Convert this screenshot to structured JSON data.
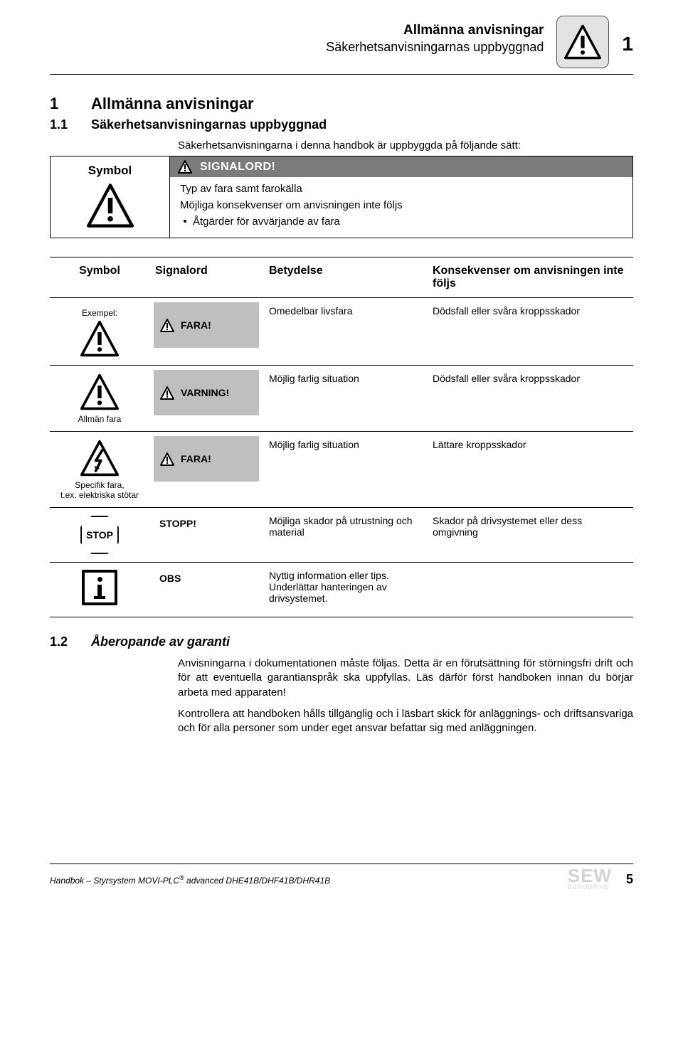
{
  "header": {
    "title_bold": "Allmänna anvisningar",
    "title_sub": "Säkerhetsanvisningarnas uppbyggnad",
    "chapter_num": "1"
  },
  "h1": {
    "num": "1",
    "text": "Allmänna anvisningar"
  },
  "h11": {
    "num": "1.1",
    "text": "Säkerhetsanvisningarnas uppbyggnad"
  },
  "intro": "Säkerhetsanvisningarna i denna handbok är uppbyggda på följande sätt:",
  "box": {
    "left_label": "Symbol",
    "signalword": "SIGNALORD!",
    "line1": "Typ av fara samt farokälla",
    "line2": "Möjliga konsekvenser om anvisningen inte följs",
    "bullet": "Åtgärder för avvärjande av fara"
  },
  "table": {
    "headers": {
      "symbol": "Symbol",
      "signal": "Signalord",
      "meaning": "Betydelse",
      "consequence": "Konsekvenser om anvisningen inte följs"
    },
    "rows": [
      {
        "sym_label": "Exempel:",
        "icon": "triangle-exclaim",
        "sym_caption": "",
        "sig_bg": true,
        "sig_icon": "triangle-exclaim-small",
        "signal": "FARA!",
        "meaning": "Omedelbar livsfara",
        "consequence": "Dödsfall eller svåra kroppsskador"
      },
      {
        "icon": "triangle-exclaim",
        "sym_caption": "Allmän fara",
        "sig_bg": true,
        "sig_icon": "triangle-exclaim-small",
        "signal": "VARNING!",
        "meaning": "Möjlig farlig situation",
        "consequence": "Dödsfall eller svåra kroppsskador"
      },
      {
        "icon": "triangle-bolt",
        "sym_caption": "Specifik fara,\nt.ex. elektriska stötar",
        "sig_bg": true,
        "sig_icon": "triangle-exclaim-small",
        "signal": "FARA!",
        "meaning": "Möjlig farlig situation",
        "consequence": "Lättare kroppsskador"
      },
      {
        "icon": "stop",
        "sym_caption": "",
        "sig_bg": false,
        "signal": "STOPP!",
        "meaning": "Möjliga skador på utrustning och material",
        "consequence": "Skador på drivsystemet eller dess omgivning"
      },
      {
        "icon": "info",
        "sym_caption": "",
        "sig_bg": false,
        "signal": "OBS",
        "meaning": "Nyttig information eller tips. Underlättar hanteringen av drivsystemet.",
        "consequence": ""
      }
    ]
  },
  "h12": {
    "num": "1.2",
    "text": "Åberopande av garanti"
  },
  "para1": "Anvisningarna i dokumentationen måste följas. Detta är en förutsättning för störningsfri drift och för att eventuella garantianspråk ska uppfyllas. Läs därför först handboken innan du börjar arbeta med apparaten!",
  "para2": "Kontrollera att handboken hålls tillgänglig och i läsbart skick för anläggnings- och driftsansvariga och för alla personer som under eget ansvar befattar sig med anläggningen.",
  "footer": {
    "left_pre": "Handbok – Styrsystem MOVI-PLC",
    "left_post": " advanced DHE41B/DHF41B/DHR41B",
    "logo": "SEW",
    "logo_sub": "EURODRIVE",
    "page": "5"
  },
  "colors": {
    "sigbar_bg": "#7b7b7b",
    "sigcell_bg": "#bfbfbf",
    "header_icon_bg": "#e3e3e3",
    "logo_gray": "#d3d3d3"
  }
}
